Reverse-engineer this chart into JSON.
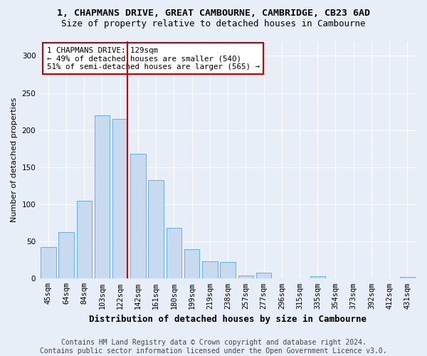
{
  "title": "1, CHAPMANS DRIVE, GREAT CAMBOURNE, CAMBRIDGE, CB23 6AD",
  "subtitle": "Size of property relative to detached houses in Cambourne",
  "xlabel": "Distribution of detached houses by size in Cambourne",
  "ylabel": "Number of detached properties",
  "categories": [
    "45sqm",
    "64sqm",
    "84sqm",
    "103sqm",
    "122sqm",
    "142sqm",
    "161sqm",
    "180sqm",
    "199sqm",
    "219sqm",
    "238sqm",
    "257sqm",
    "277sqm",
    "296sqm",
    "315sqm",
    "335sqm",
    "354sqm",
    "373sqm",
    "392sqm",
    "412sqm",
    "431sqm"
  ],
  "values": [
    42,
    63,
    105,
    220,
    215,
    168,
    133,
    68,
    40,
    23,
    22,
    4,
    8,
    0,
    0,
    3,
    0,
    0,
    0,
    0,
    2
  ],
  "bar_color": "#c8daf0",
  "bar_edge_color": "#6aaee8",
  "vline_x_idx": 4,
  "vline_color": "#cc0000",
  "annotation_text": "1 CHAPMANS DRIVE: 129sqm\n← 49% of detached houses are smaller (540)\n51% of semi-detached houses are larger (565) →",
  "annotation_box_color": "#ffffff",
  "annotation_box_edge": "#cc0000",
  "ylim": [
    0,
    320
  ],
  "yticks": [
    0,
    50,
    100,
    150,
    200,
    250,
    300
  ],
  "footer_text": "Contains HM Land Registry data © Crown copyright and database right 2024.\nContains public sector information licensed under the Open Government Licence v3.0.",
  "bg_color": "#e8eef8",
  "plot_bg_color": "#e8eef8",
  "title_fontsize": 9.5,
  "subtitle_fontsize": 9,
  "xlabel_fontsize": 9,
  "ylabel_fontsize": 8,
  "tick_fontsize": 7.5,
  "footer_fontsize": 7
}
